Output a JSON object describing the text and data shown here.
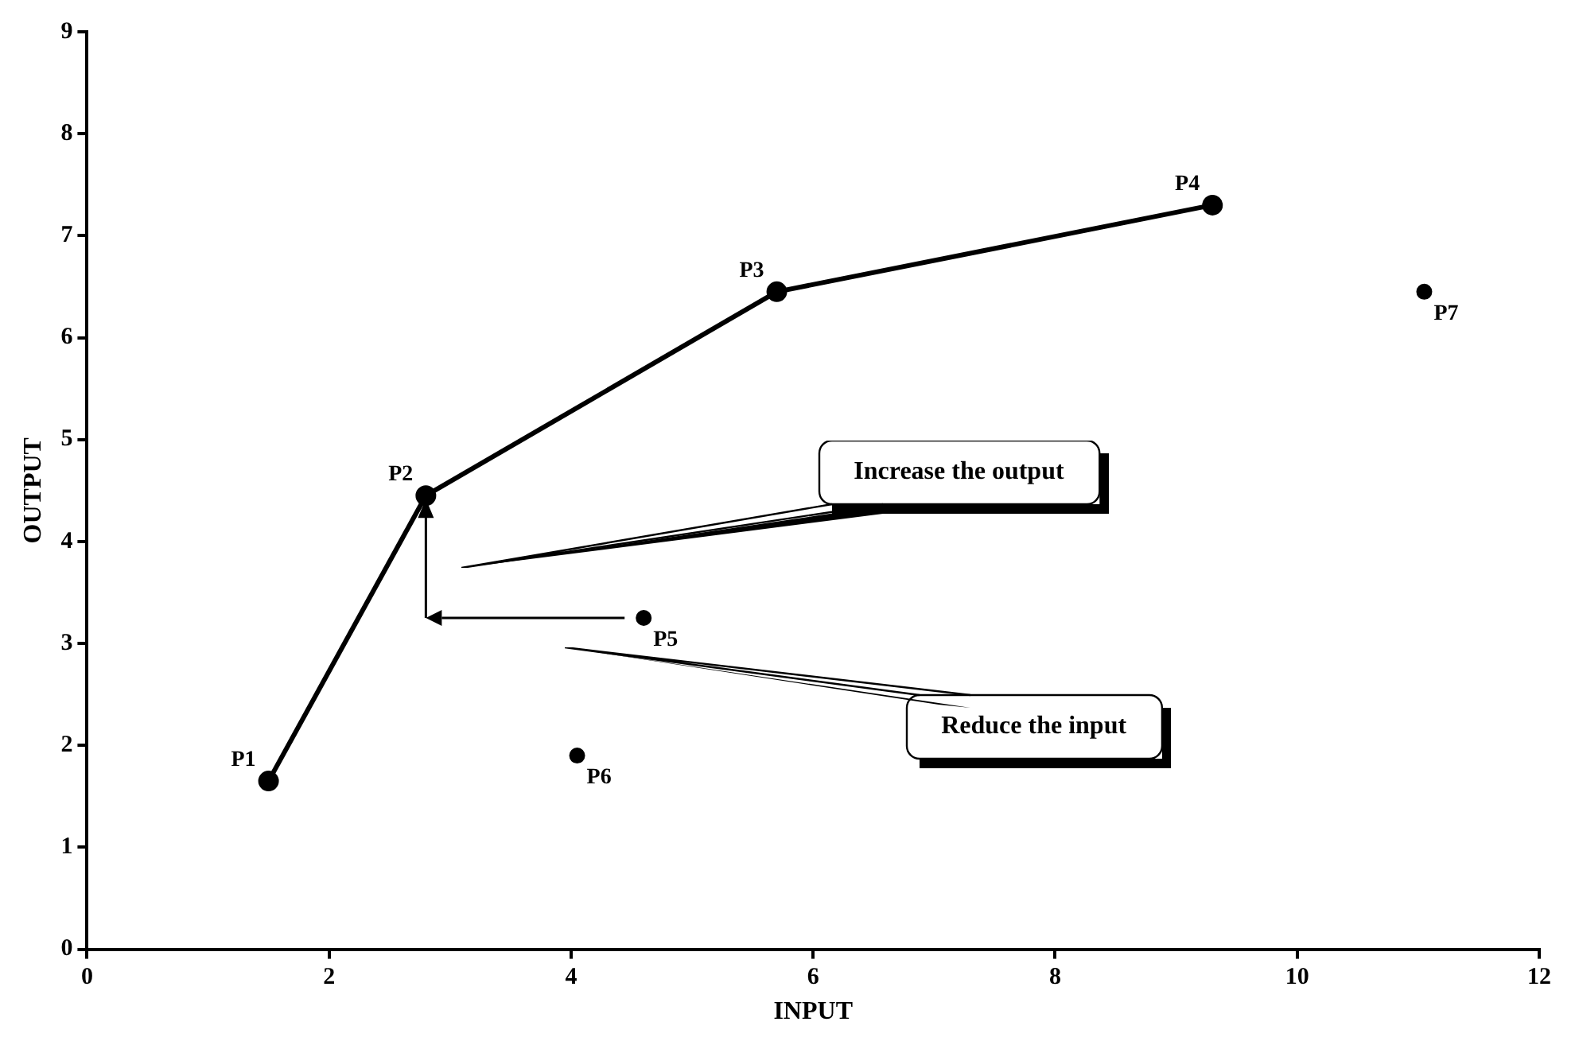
{
  "chart_data": {
    "type": "line",
    "xlabel": "INPUT",
    "ylabel": "OUTPUT",
    "xlim": [
      0,
      12
    ],
    "ylim": [
      0,
      9
    ],
    "xticks": [
      0,
      2,
      4,
      6,
      8,
      10,
      12
    ],
    "yticks": [
      0,
      1,
      2,
      3,
      4,
      5,
      6,
      7,
      8,
      9
    ],
    "grid": false,
    "legend": false,
    "marker": "circle",
    "series": [
      {
        "color": "#000000",
        "x": [
          1.5,
          2.8,
          5.7,
          9.3
        ],
        "values": [
          1.65,
          4.45,
          6.45,
          7.3
        ]
      },
      {
        "type": "scatter",
        "color": "#000000",
        "x": [
          4.6,
          4.05,
          11.05
        ],
        "values": [
          3.25,
          1.9,
          6.45
        ]
      }
    ],
    "annotations": [
      {
        "text": "P1",
        "x": 1.5,
        "y": 1.65
      },
      {
        "text": "P2",
        "x": 2.8,
        "y": 4.45
      },
      {
        "text": "P3",
        "x": 5.7,
        "y": 6.45
      },
      {
        "text": "P4",
        "x": 9.3,
        "y": 7.3
      },
      {
        "text": "P5",
        "x": 4.6,
        "y": 3.25
      },
      {
        "text": "P6",
        "x": 4.05,
        "y": 1.9
      },
      {
        "text": "P7",
        "x": 11.05,
        "y": 6.45
      },
      "Increase the output",
      "Reduce the input"
    ]
  }
}
